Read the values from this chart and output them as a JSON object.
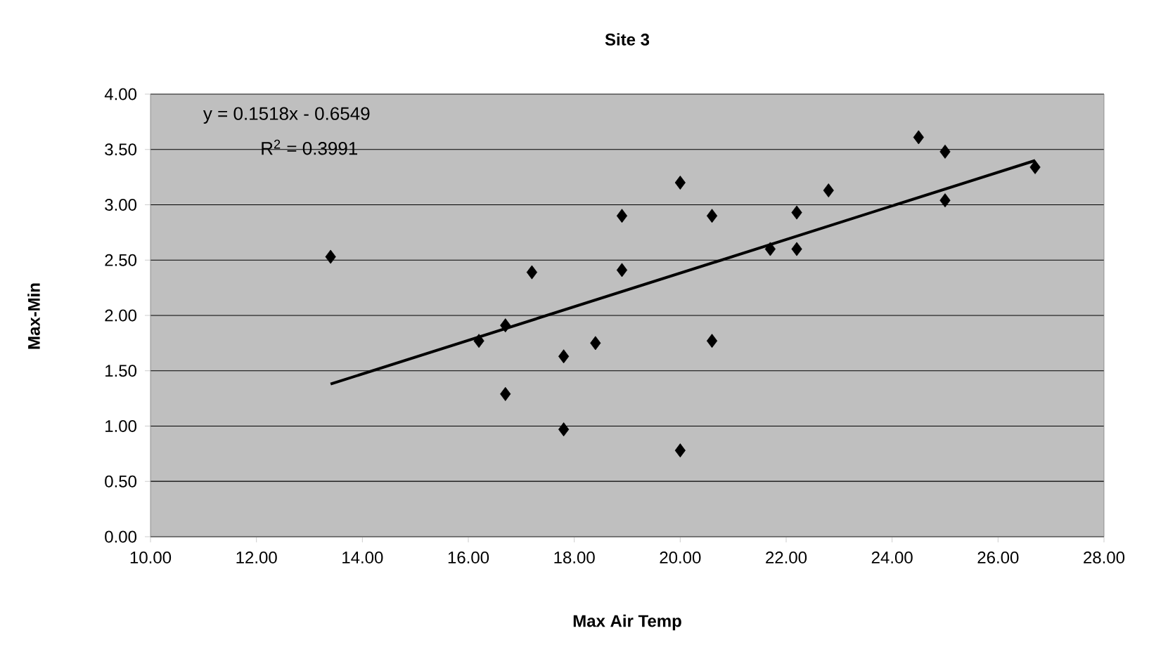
{
  "chart_data": {
    "type": "scatter",
    "title": "Site 3",
    "xlabel": "Max Air Temp",
    "ylabel": "Max-Min",
    "annotations": [
      "y = 0.1518x - 0.6549",
      "R$^{2}$ = 0.3991"
    ],
    "xlim": [
      10,
      28
    ],
    "ylim": [
      0,
      4
    ],
    "xticks": [
      {
        "value": 10,
        "label": "10.00"
      },
      {
        "value": 12,
        "label": "12.00"
      },
      {
        "value": 14,
        "label": "14.00"
      },
      {
        "value": 16,
        "label": "16.00"
      },
      {
        "value": 18,
        "label": "18.00"
      },
      {
        "value": 20,
        "label": "20.00"
      },
      {
        "value": 22,
        "label": "22.00"
      },
      {
        "value": 24,
        "label": "24.00"
      },
      {
        "value": 26,
        "label": "26.00"
      },
      {
        "value": 28,
        "label": "28.00"
      }
    ],
    "yticks": [
      {
        "value": 0,
        "label": "0.00"
      },
      {
        "value": 0.5,
        "label": "0.50"
      },
      {
        "value": 1,
        "label": "1.00"
      },
      {
        "value": 1.5,
        "label": "1.50"
      },
      {
        "value": 2,
        "label": "2.00"
      },
      {
        "value": 2.5,
        "label": "2.50"
      },
      {
        "value": 3,
        "label": "3.00"
      },
      {
        "value": 3.5,
        "label": "3.50"
      },
      {
        "value": 4,
        "label": "4.00"
      }
    ],
    "grid": "y",
    "marker": "diamond",
    "series": [
      {
        "color": "#000000",
        "x": [
          13.4,
          16.2,
          16.7,
          16.7,
          17.2,
          17.8,
          17.8,
          18.4,
          18.9,
          18.9,
          20.0,
          20.0,
          20.6,
          20.6,
          21.7,
          22.2,
          22.2,
          22.8,
          24.5,
          25.0,
          25.0,
          26.7
        ],
        "values": [
          2.53,
          1.77,
          1.91,
          1.29,
          2.39,
          1.63,
          0.97,
          1.75,
          2.9,
          2.41,
          3.2,
          0.78,
          2.9,
          1.77,
          2.6,
          2.93,
          2.6,
          3.13,
          3.61,
          3.48,
          3.04,
          3.34
        ]
      },
      {
        "type": "line",
        "marker": "none",
        "color": "#000000",
        "x": [
          13.4,
          26.7
        ],
        "values": [
          1.38,
          3.4
        ]
      }
    ]
  }
}
